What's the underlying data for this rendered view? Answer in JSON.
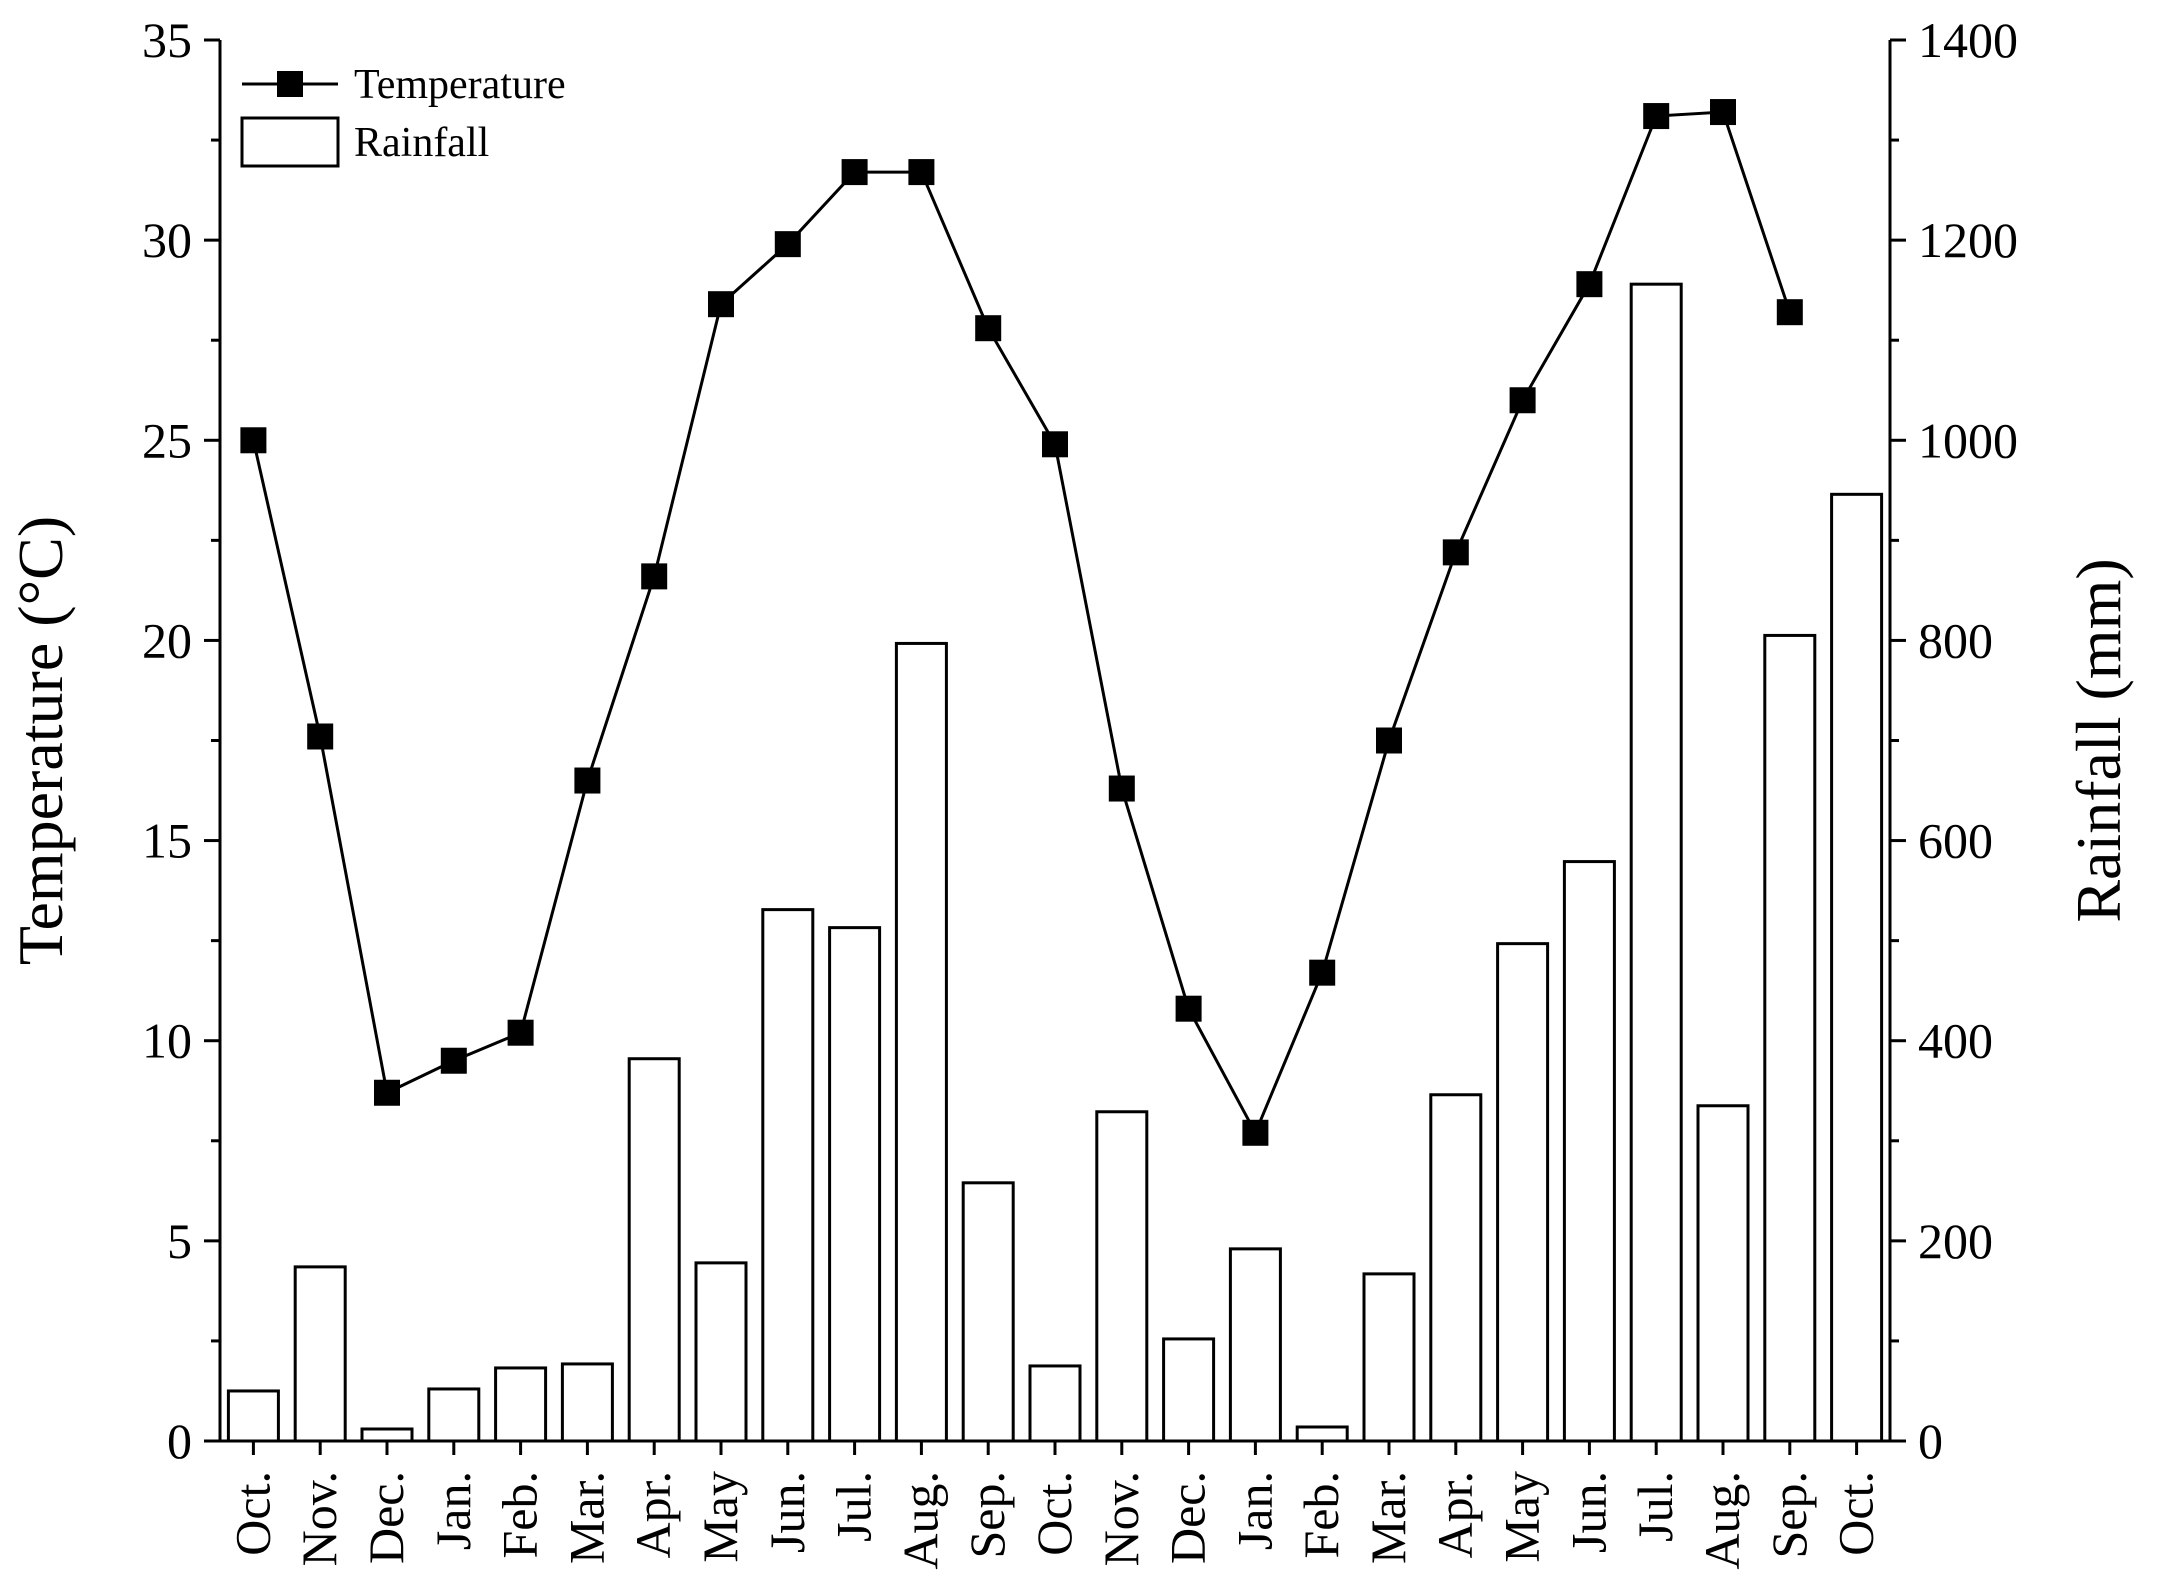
{
  "chart_data": {
    "type": "bar+line",
    "categories": [
      "Oct.",
      "Nov.",
      "Dec.",
      "Jan.",
      "Feb.",
      "Mar.",
      "Apr.",
      "May",
      "Jun.",
      "Jul.",
      "Aug.",
      "Sep.",
      "Oct.",
      "Nov.",
      "Dec.",
      "Jan.",
      "Feb.",
      "Mar.",
      "Apr.",
      "May",
      "Jun.",
      "Jul.",
      "Aug.",
      "Sep.",
      "Oct."
    ],
    "series": [
      {
        "name": "Temperature",
        "type": "line",
        "axis": "left",
        "values": [
          25.0,
          17.6,
          8.7,
          9.5,
          10.2,
          16.5,
          21.6,
          28.4,
          29.9,
          31.7,
          31.7,
          27.8,
          24.9,
          16.3,
          10.8,
          7.7,
          11.7,
          17.5,
          22.2,
          26.0,
          28.9,
          33.1,
          33.2,
          28.2,
          null
        ],
        "color": "#000000"
      },
      {
        "name": "Rainfall",
        "type": "bar",
        "axis": "right",
        "values": [
          50,
          174,
          12,
          52,
          73,
          77,
          382,
          178,
          531,
          513,
          797,
          258,
          75,
          329,
          102,
          192,
          14,
          167,
          346,
          497,
          579,
          1156,
          335,
          805,
          946
        ],
        "color": "#ffffff"
      }
    ],
    "ylabel_left": "Temperature (°C)",
    "ylabel_right": "Rainfall (mm)",
    "ylim_left": [
      0,
      35
    ],
    "ylim_right": [
      0,
      1400
    ],
    "yticks_left": [
      "0",
      "5",
      "10",
      "15",
      "20",
      "25",
      "30",
      "35"
    ],
    "yticks_right": [
      "0",
      "200",
      "400",
      "600",
      "800",
      "1000",
      "1200",
      "1400"
    ],
    "legend": [
      "Temperature",
      "Rainfall"
    ],
    "legend_position": "top-left",
    "grid": false
  }
}
